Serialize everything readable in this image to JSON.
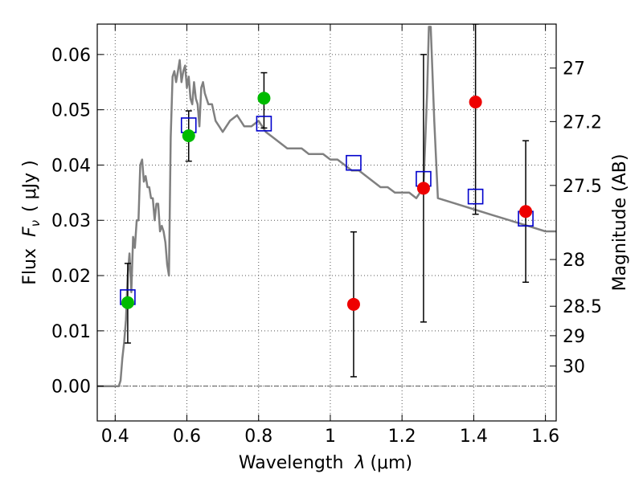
{
  "chart_data": {
    "type": "scatter",
    "xlabel_text": "Wavelength",
    "xlabel_symbol": "λ",
    "xlabel_unit": "(μm)",
    "ylabel_text": "Flux",
    "ylabel_symbol": "F",
    "ylabel_subscript": "ν",
    "ylabel_unit": "( μJy )",
    "y2label": "Magnitude (AB)",
    "xlim": [
      0.35,
      1.63
    ],
    "ylim": [
      -0.0063,
      0.0655
    ],
    "grid": true,
    "x_ticks": [
      0.4,
      0.6,
      0.8,
      1.0,
      1.2,
      1.4,
      1.6
    ],
    "x_tick_labels": [
      "0.4",
      "0.6",
      "0.8",
      "1",
      "1.2",
      "1.4",
      "1.6"
    ],
    "y_ticks": [
      0.0,
      0.01,
      0.02,
      0.03,
      0.04,
      0.05,
      0.06
    ],
    "y_tick_labels": [
      "0.00",
      "0.01",
      "0.02",
      "0.03",
      "0.04",
      "0.05",
      "0.06"
    ],
    "y2_ticks": [
      27.0,
      27.2,
      27.5,
      28.0,
      28.5,
      29.0,
      30.0
    ],
    "y2_tick_labels": [
      "27",
      "27.2",
      "27.5",
      "28",
      "28.5",
      "29",
      "30"
    ],
    "colors": {
      "model": "#808080",
      "model_phot": "#0000cc",
      "detection": "#00bb00",
      "upper": "#ee0000",
      "errorbar": "#000000",
      "grid": "#555555",
      "zero_line": "#555555"
    },
    "series": [
      {
        "name": "model spectrum",
        "kind": "line",
        "x": [
          0.35,
          0.4,
          0.405,
          0.41,
          0.415,
          0.42,
          0.425,
          0.43,
          0.435,
          0.44,
          0.445,
          0.45,
          0.455,
          0.46,
          0.465,
          0.47,
          0.475,
          0.48,
          0.485,
          0.49,
          0.495,
          0.5,
          0.505,
          0.51,
          0.515,
          0.52,
          0.525,
          0.53,
          0.535,
          0.54,
          0.545,
          0.55,
          0.555,
          0.56,
          0.565,
          0.57,
          0.575,
          0.58,
          0.585,
          0.59,
          0.595,
          0.6,
          0.605,
          0.61,
          0.615,
          0.62,
          0.625,
          0.63,
          0.635,
          0.64,
          0.645,
          0.65,
          0.66,
          0.67,
          0.68,
          0.69,
          0.7,
          0.72,
          0.74,
          0.76,
          0.78,
          0.8,
          0.82,
          0.84,
          0.86,
          0.88,
          0.9,
          0.92,
          0.94,
          0.96,
          0.98,
          1.0,
          1.02,
          1.04,
          1.06,
          1.08,
          1.1,
          1.12,
          1.14,
          1.16,
          1.18,
          1.2,
          1.22,
          1.24,
          1.25,
          1.26,
          1.27,
          1.275,
          1.28,
          1.29,
          1.3,
          1.35,
          1.4,
          1.45,
          1.5,
          1.55,
          1.6,
          1.63
        ],
        "y": [
          0.0,
          0.0,
          0.0,
          0.0,
          0.001,
          0.005,
          0.008,
          0.012,
          0.02,
          0.024,
          0.017,
          0.027,
          0.025,
          0.03,
          0.03,
          0.04,
          0.041,
          0.037,
          0.038,
          0.036,
          0.036,
          0.034,
          0.034,
          0.03,
          0.033,
          0.033,
          0.028,
          0.029,
          0.028,
          0.026,
          0.022,
          0.02,
          0.045,
          0.056,
          0.057,
          0.055,
          0.057,
          0.059,
          0.055,
          0.057,
          0.058,
          0.054,
          0.056,
          0.052,
          0.051,
          0.055,
          0.052,
          0.051,
          0.047,
          0.054,
          0.055,
          0.053,
          0.051,
          0.051,
          0.048,
          0.047,
          0.046,
          0.048,
          0.049,
          0.047,
          0.047,
          0.048,
          0.046,
          0.045,
          0.044,
          0.043,
          0.043,
          0.043,
          0.042,
          0.042,
          0.042,
          0.041,
          0.041,
          0.04,
          0.039,
          0.039,
          0.038,
          0.037,
          0.036,
          0.036,
          0.035,
          0.035,
          0.035,
          0.034,
          0.035,
          0.036,
          0.053,
          0.065,
          0.065,
          0.048,
          0.034,
          0.033,
          0.032,
          0.031,
          0.03,
          0.029,
          0.028,
          0.028
        ]
      },
      {
        "name": "model photometry",
        "marker": "open-square",
        "x": [
          0.435,
          0.605,
          0.815,
          1.065,
          1.26,
          1.405,
          1.545
        ],
        "y": [
          0.0161,
          0.0472,
          0.0475,
          0.0404,
          0.0375,
          0.0343,
          0.0303
        ]
      },
      {
        "name": "observed detections",
        "marker": "filled-circle",
        "x": [
          0.435,
          0.605,
          0.815
        ],
        "y": [
          0.0151,
          0.0453,
          0.0521
        ],
        "yerr_low": [
          0.0073,
          0.0046,
          0.0054
        ],
        "yerr_high": [
          0.0071,
          0.0045,
          0.0046
        ]
      },
      {
        "name": "observed non-detections",
        "marker": "filled-circle",
        "x": [
          1.065,
          1.26,
          1.405,
          1.545
        ],
        "y": [
          0.0148,
          0.0358,
          0.0514,
          0.0316
        ],
        "yerr_low": [
          0.0131,
          0.0242,
          0.0203,
          0.0128
        ],
        "yerr_high": [
          0.0131,
          0.0242,
          0.0141,
          0.0128
        ]
      }
    ]
  }
}
